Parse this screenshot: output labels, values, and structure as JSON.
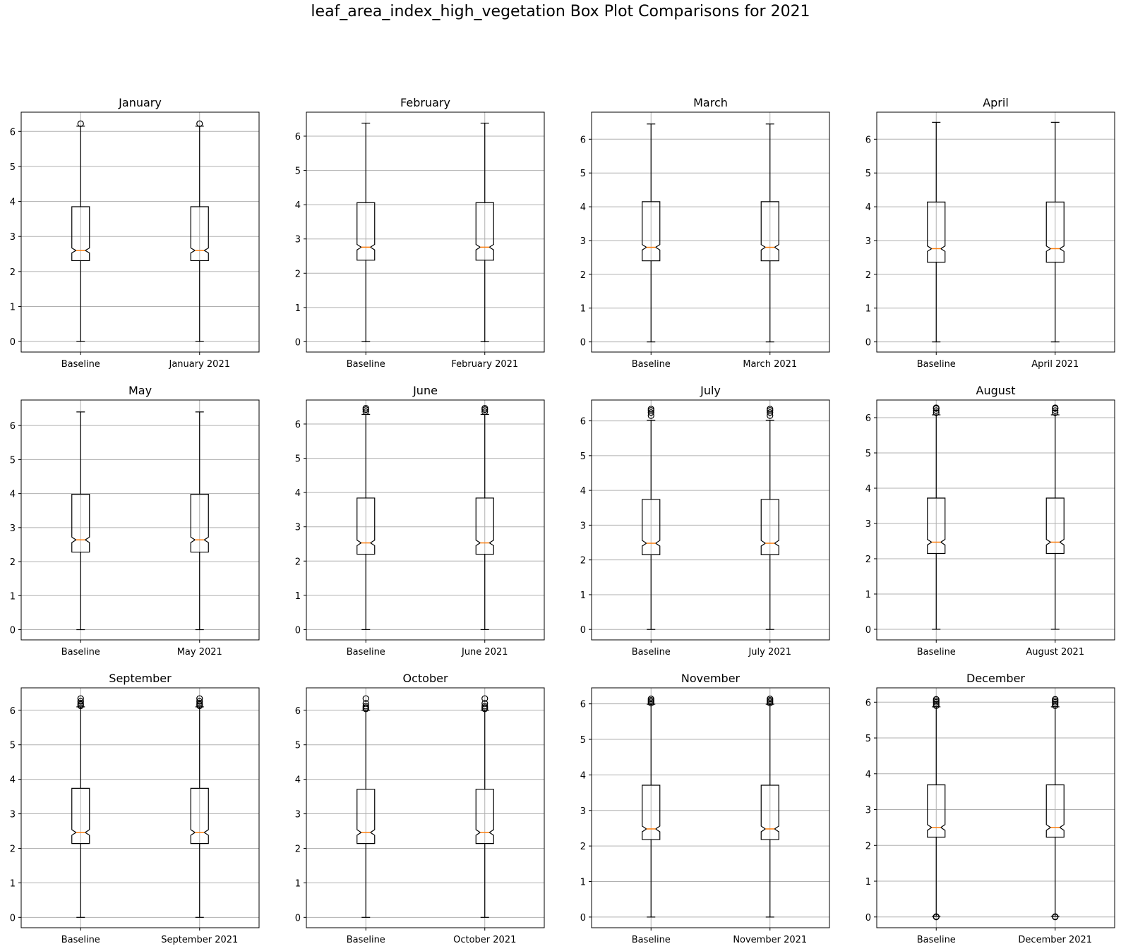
{
  "chart_data": {
    "title": "leaf_area_index_high_vegetation Box Plot Comparisons for 2021",
    "type": "box",
    "layout": "3x4 grid",
    "grid": "horizontal only",
    "colors": {
      "box": "#000000",
      "median": "#ff7f0e",
      "grid": "#b0b0b0"
    },
    "subplots": [
      {
        "title": "January",
        "categories": [
          "Baseline",
          "January 2021"
        ],
        "ylim": [
          -0.3,
          6.55
        ],
        "yticks": [
          0,
          1,
          2,
          3,
          4,
          5,
          6
        ],
        "boxes": [
          {
            "name": "Baseline",
            "whisker_low": 0,
            "q1": 2.31,
            "median": 2.6,
            "q3": 3.85,
            "whisker_high": 6.15,
            "notch_low": 2.53,
            "notch_high": 2.67,
            "outliers": [
              6.22
            ]
          },
          {
            "name": "January 2021",
            "whisker_low": 0,
            "q1": 2.31,
            "median": 2.6,
            "q3": 3.85,
            "whisker_high": 6.15,
            "notch_low": 2.53,
            "notch_high": 2.67,
            "outliers": [
              6.22
            ]
          }
        ]
      },
      {
        "title": "February",
        "categories": [
          "Baseline",
          "February 2021"
        ],
        "ylim": [
          -0.3,
          6.7
        ],
        "yticks": [
          0,
          1,
          2,
          3,
          4,
          5,
          6
        ],
        "boxes": [
          {
            "name": "Baseline",
            "whisker_low": 0,
            "q1": 2.38,
            "median": 2.76,
            "q3": 4.06,
            "whisker_high": 6.38,
            "notch_low": 2.68,
            "notch_high": 2.84,
            "outliers": []
          },
          {
            "name": "February 2021",
            "whisker_low": 0,
            "q1": 2.38,
            "median": 2.76,
            "q3": 4.06,
            "whisker_high": 6.38,
            "notch_low": 2.68,
            "notch_high": 2.84,
            "outliers": []
          }
        ]
      },
      {
        "title": "March",
        "categories": [
          "Baseline",
          "March 2021"
        ],
        "ylim": [
          -0.3,
          6.8
        ],
        "yticks": [
          0,
          1,
          2,
          3,
          4,
          5,
          6
        ],
        "boxes": [
          {
            "name": "Baseline",
            "whisker_low": 0,
            "q1": 2.4,
            "median": 2.8,
            "q3": 4.15,
            "whisker_high": 6.45,
            "notch_low": 2.72,
            "notch_high": 2.88,
            "outliers": []
          },
          {
            "name": "March 2021",
            "whisker_low": 0,
            "q1": 2.4,
            "median": 2.8,
            "q3": 4.15,
            "whisker_high": 6.45,
            "notch_low": 2.72,
            "notch_high": 2.88,
            "outliers": []
          }
        ]
      },
      {
        "title": "April",
        "categories": [
          "Baseline",
          "April 2021"
        ],
        "ylim": [
          -0.3,
          6.8
        ],
        "yticks": [
          0,
          1,
          2,
          3,
          4,
          5,
          6
        ],
        "boxes": [
          {
            "name": "Baseline",
            "whisker_low": 0,
            "q1": 2.36,
            "median": 2.76,
            "q3": 4.14,
            "whisker_high": 6.5,
            "notch_low": 2.68,
            "notch_high": 2.84,
            "outliers": []
          },
          {
            "name": "April 2021",
            "whisker_low": 0,
            "q1": 2.36,
            "median": 2.76,
            "q3": 4.14,
            "whisker_high": 6.5,
            "notch_low": 2.68,
            "notch_high": 2.84,
            "outliers": []
          }
        ]
      },
      {
        "title": "May",
        "categories": [
          "Baseline",
          "May 2021"
        ],
        "ylim": [
          -0.3,
          6.75
        ],
        "yticks": [
          0,
          1,
          2,
          3,
          4,
          5,
          6
        ],
        "boxes": [
          {
            "name": "Baseline",
            "whisker_low": 0,
            "q1": 2.28,
            "median": 2.64,
            "q3": 3.98,
            "whisker_high": 6.4,
            "notch_low": 2.56,
            "notch_high": 2.72,
            "outliers": []
          },
          {
            "name": "May 2021",
            "whisker_low": 0,
            "q1": 2.28,
            "median": 2.64,
            "q3": 3.98,
            "whisker_high": 6.4,
            "notch_low": 2.56,
            "notch_high": 2.72,
            "outliers": []
          }
        ]
      },
      {
        "title": "June",
        "categories": [
          "Baseline",
          "June 2021"
        ],
        "ylim": [
          -0.3,
          6.7
        ],
        "yticks": [
          0,
          1,
          2,
          3,
          4,
          5,
          6
        ],
        "boxes": [
          {
            "name": "Baseline",
            "whisker_low": 0,
            "q1": 2.2,
            "median": 2.53,
            "q3": 3.84,
            "whisker_high": 6.28,
            "notch_low": 2.45,
            "notch_high": 2.61,
            "outliers": [
              6.36,
              6.42,
              6.46
            ]
          },
          {
            "name": "June 2021",
            "whisker_low": 0,
            "q1": 2.2,
            "median": 2.53,
            "q3": 3.84,
            "whisker_high": 6.28,
            "notch_low": 2.45,
            "notch_high": 2.61,
            "outliers": [
              6.36,
              6.42,
              6.46
            ]
          }
        ]
      },
      {
        "title": "July",
        "categories": [
          "Baseline",
          "July 2021"
        ],
        "ylim": [
          -0.3,
          6.6
        ],
        "yticks": [
          0,
          1,
          2,
          3,
          4,
          5,
          6
        ],
        "boxes": [
          {
            "name": "Baseline",
            "whisker_low": 0,
            "q1": 2.15,
            "median": 2.48,
            "q3": 3.74,
            "whisker_high": 6.02,
            "notch_low": 2.4,
            "notch_high": 2.56,
            "outliers": [
              6.15,
              6.24,
              6.3,
              6.34
            ]
          },
          {
            "name": "July 2021",
            "whisker_low": 0,
            "q1": 2.15,
            "median": 2.48,
            "q3": 3.74,
            "whisker_high": 6.02,
            "notch_low": 2.4,
            "notch_high": 2.56,
            "outliers": [
              6.15,
              6.24,
              6.3,
              6.34
            ]
          }
        ]
      },
      {
        "title": "August",
        "categories": [
          "Baseline",
          "August 2021"
        ],
        "ylim": [
          -0.3,
          6.5
        ],
        "yticks": [
          0,
          1,
          2,
          3,
          4,
          5,
          6
        ],
        "boxes": [
          {
            "name": "Baseline",
            "whisker_low": 0,
            "q1": 2.15,
            "median": 2.47,
            "q3": 3.72,
            "whisker_high": 6.08,
            "notch_low": 2.39,
            "notch_high": 2.55,
            "outliers": [
              6.14,
              6.2,
              6.26,
              6.28
            ]
          },
          {
            "name": "August 2021",
            "whisker_low": 0,
            "q1": 2.15,
            "median": 2.47,
            "q3": 3.72,
            "whisker_high": 6.08,
            "notch_low": 2.39,
            "notch_high": 2.55,
            "outliers": [
              6.14,
              6.2,
              6.26,
              6.28
            ]
          }
        ]
      },
      {
        "title": "September",
        "categories": [
          "Baseline",
          "September 2021"
        ],
        "ylim": [
          -0.3,
          6.65
        ],
        "yticks": [
          0,
          1,
          2,
          3,
          4,
          5,
          6
        ],
        "boxes": [
          {
            "name": "Baseline",
            "whisker_low": 0,
            "q1": 2.14,
            "median": 2.46,
            "q3": 3.74,
            "whisker_high": 6.1,
            "notch_low": 2.38,
            "notch_high": 2.54,
            "outliers": [
              6.13,
              6.17,
              6.21,
              6.26,
              6.34
            ]
          },
          {
            "name": "September 2021",
            "whisker_low": 0,
            "q1": 2.14,
            "median": 2.46,
            "q3": 3.74,
            "whisker_high": 6.1,
            "notch_low": 2.38,
            "notch_high": 2.54,
            "outliers": [
              6.13,
              6.17,
              6.21,
              6.26,
              6.34
            ]
          }
        ]
      },
      {
        "title": "October",
        "categories": [
          "Baseline",
          "October 2021"
        ],
        "ylim": [
          -0.3,
          6.65
        ],
        "yticks": [
          0,
          1,
          2,
          3,
          4,
          5,
          6
        ],
        "boxes": [
          {
            "name": "Baseline",
            "whisker_low": 0,
            "q1": 2.14,
            "median": 2.46,
            "q3": 3.71,
            "whisker_high": 6.0,
            "notch_low": 2.38,
            "notch_high": 2.54,
            "outliers": [
              6.04,
              6.08,
              6.12,
              6.2,
              6.34
            ]
          },
          {
            "name": "October 2021",
            "whisker_low": 0,
            "q1": 2.14,
            "median": 2.46,
            "q3": 3.71,
            "whisker_high": 6.0,
            "notch_low": 2.38,
            "notch_high": 2.54,
            "outliers": [
              6.04,
              6.08,
              6.12,
              6.2,
              6.34
            ]
          }
        ]
      },
      {
        "title": "November",
        "categories": [
          "Baseline",
          "November 2021"
        ],
        "ylim": [
          -0.3,
          6.45
        ],
        "yticks": [
          0,
          1,
          2,
          3,
          4,
          5,
          6
        ],
        "boxes": [
          {
            "name": "Baseline",
            "whisker_low": 0,
            "q1": 2.18,
            "median": 2.48,
            "q3": 3.71,
            "whisker_high": 5.99,
            "notch_low": 2.4,
            "notch_high": 2.56,
            "outliers": [
              6.02,
              6.06,
              6.1,
              6.14
            ]
          },
          {
            "name": "November 2021",
            "whisker_low": 0,
            "q1": 2.18,
            "median": 2.48,
            "q3": 3.71,
            "whisker_high": 5.99,
            "notch_low": 2.4,
            "notch_high": 2.56,
            "outliers": [
              6.02,
              6.06,
              6.1,
              6.14
            ]
          }
        ]
      },
      {
        "title": "December",
        "categories": [
          "Baseline",
          "December 2021"
        ],
        "ylim": [
          -0.3,
          6.4
        ],
        "yticks": [
          0,
          1,
          2,
          3,
          4,
          5,
          6
        ],
        "boxes": [
          {
            "name": "Baseline",
            "whisker_low": 0.02,
            "q1": 2.23,
            "median": 2.5,
            "q3": 3.69,
            "whisker_high": 5.87,
            "notch_low": 2.42,
            "notch_high": 2.58,
            "outliers": [
              0,
              0.01,
              5.9,
              5.95,
              6.0,
              6.04,
              6.08
            ]
          },
          {
            "name": "December 2021",
            "whisker_low": 0.02,
            "q1": 2.23,
            "median": 2.5,
            "q3": 3.69,
            "whisker_high": 5.87,
            "notch_low": 2.42,
            "notch_high": 2.58,
            "outliers": [
              0,
              0.01,
              5.9,
              5.95,
              6.0,
              6.04,
              6.08
            ]
          }
        ]
      }
    ]
  }
}
